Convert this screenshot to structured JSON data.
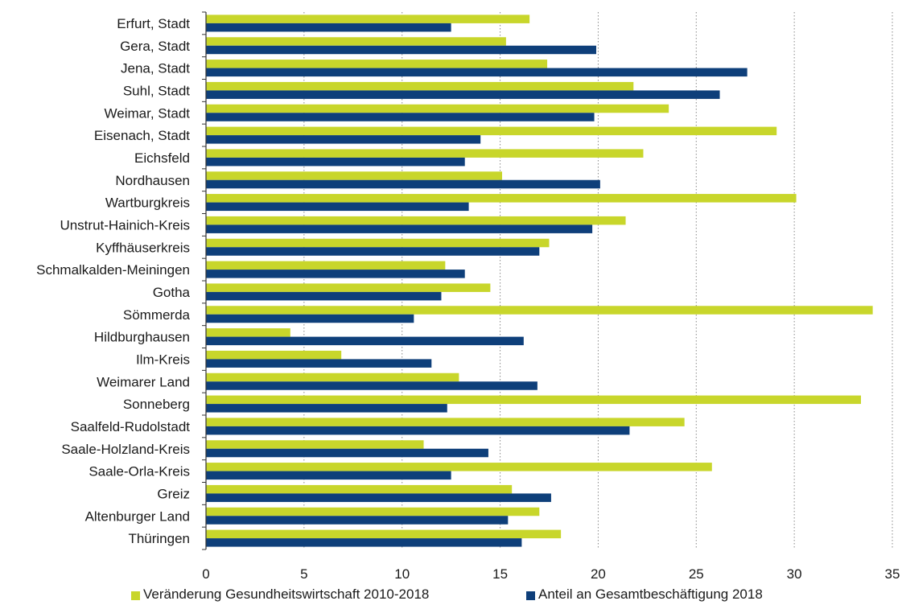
{
  "chart_data": {
    "type": "bar",
    "orientation": "horizontal",
    "categories": [
      "Erfurt, Stadt",
      "Gera, Stadt",
      "Jena, Stadt",
      "Suhl, Stadt",
      "Weimar, Stadt",
      "Eisenach, Stadt",
      "Eichsfeld",
      "Nordhausen",
      "Wartburgkreis",
      "Unstrut-Hainich-Kreis",
      "Kyffhäuserkreis",
      "Schmalkalden-Meiningen",
      "Gotha",
      "Sömmerda",
      "Hildburghausen",
      "Ilm-Kreis",
      "Weimarer Land",
      "Sonneberg",
      "Saalfeld-Rudolstadt",
      "Saale-Holzland-Kreis",
      "Saale-Orla-Kreis",
      "Greiz",
      "Altenburger Land",
      "Thüringen"
    ],
    "series": [
      {
        "name": "Veränderung Gesundheitswirtschaft 2010-2018",
        "color": "#c8d62b",
        "values": [
          16.5,
          15.3,
          17.4,
          21.8,
          23.6,
          29.1,
          22.3,
          15.1,
          30.1,
          21.4,
          17.5,
          12.2,
          14.5,
          34.0,
          4.3,
          6.9,
          12.9,
          33.4,
          24.4,
          11.1,
          25.8,
          15.6,
          17.0,
          18.1
        ]
      },
      {
        "name": "Anteil an Gesamtbeschäftigung 2018",
        "color": "#0e3f7a",
        "values": [
          12.5,
          19.9,
          27.6,
          26.2,
          19.8,
          14.0,
          13.2,
          20.1,
          13.4,
          19.7,
          17.0,
          13.2,
          12.0,
          10.6,
          16.2,
          11.5,
          16.9,
          12.3,
          21.6,
          14.4,
          12.5,
          17.6,
          15.4,
          16.1
        ]
      }
    ],
    "xlim": [
      0,
      35
    ],
    "xticks": [
      "0",
      "5",
      "10",
      "15",
      "20",
      "25",
      "30",
      "35"
    ],
    "grid": "vertical dotted",
    "legend_position": "bottom",
    "title": "",
    "xlabel": "",
    "ylabel": ""
  }
}
